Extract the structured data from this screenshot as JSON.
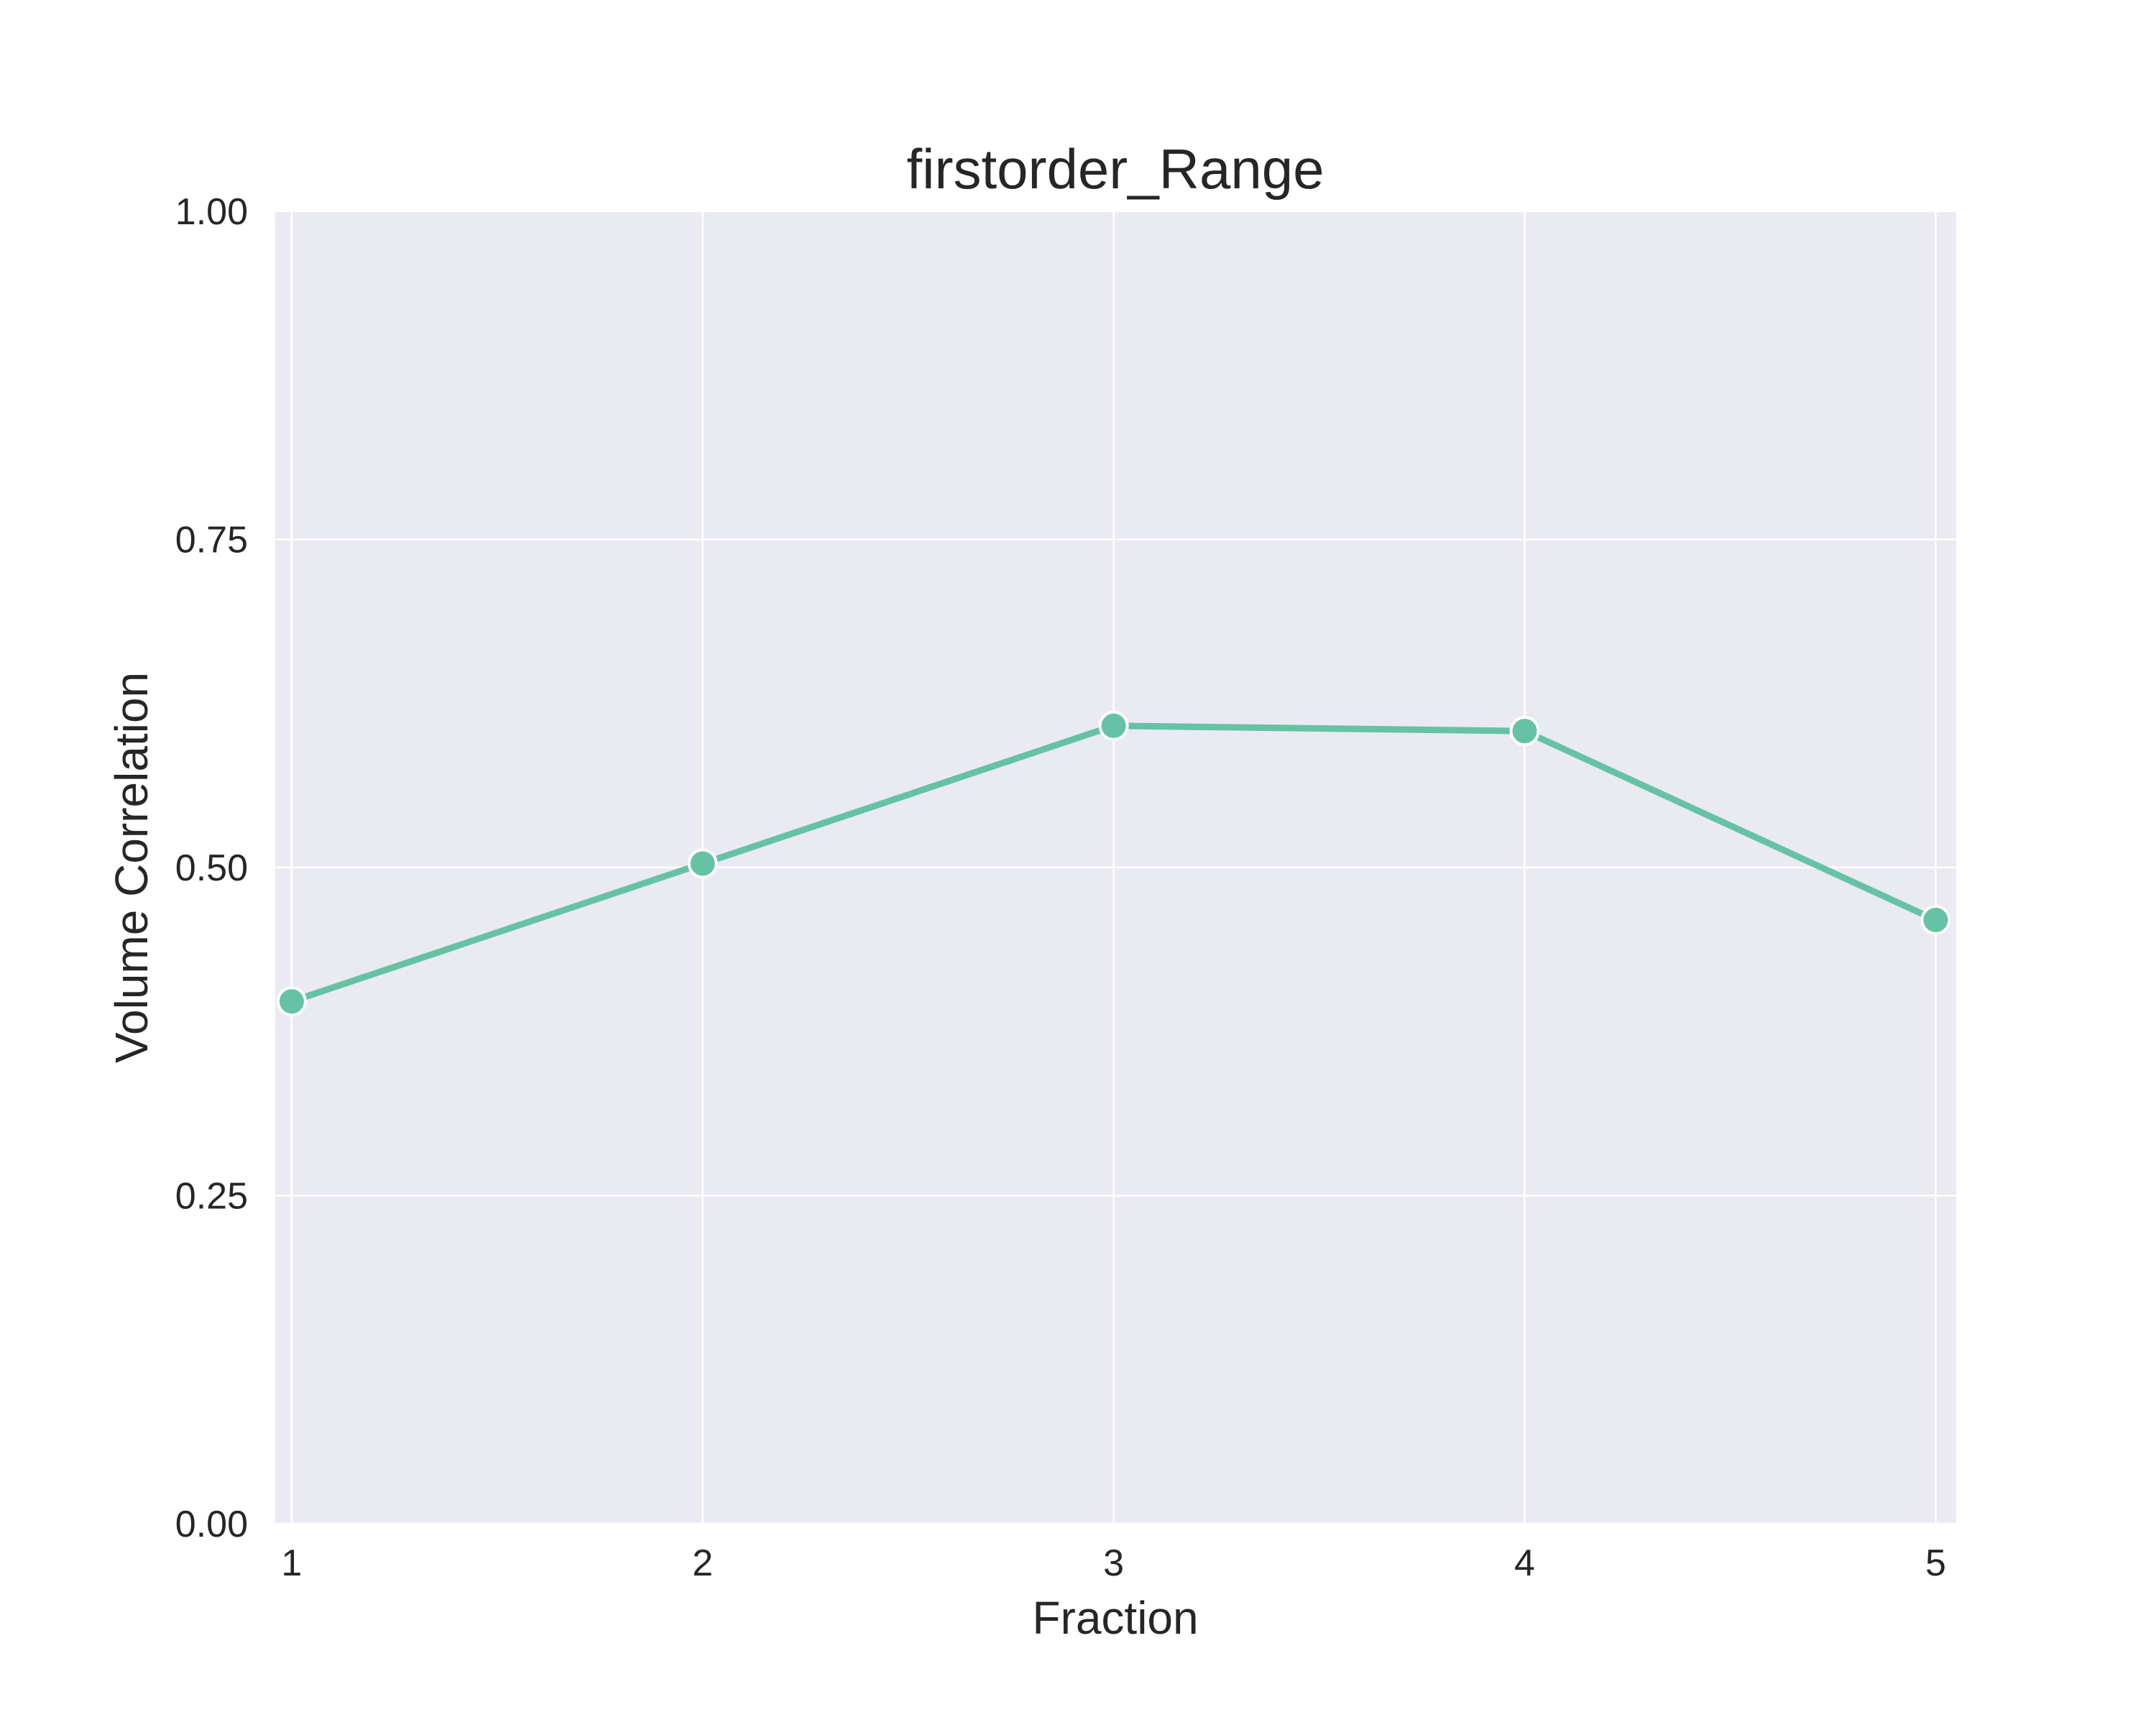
{
  "chart_data": {
    "type": "line",
    "title": "firstorder_Range",
    "xlabel": "Fraction",
    "ylabel": "Volume Correlation",
    "x": [
      1,
      2,
      3,
      4,
      5
    ],
    "x_tick_labels": [
      "1",
      "2",
      "3",
      "4",
      "5"
    ],
    "y_ticks": [
      0.0,
      0.25,
      0.5,
      0.75,
      1.0
    ],
    "y_tick_labels": [
      "0.00",
      "0.25",
      "0.50",
      "0.75",
      "1.00"
    ],
    "xlim": [
      0.96,
      5.05
    ],
    "ylim": [
      0.0,
      1.0
    ],
    "grid": true,
    "series": [
      {
        "values": [
          0.398,
          0.503,
          0.608,
          0.604,
          0.46
        ],
        "color": "#66c2a5",
        "marker": "circle"
      }
    ],
    "background_color": "#eaeaf2"
  }
}
